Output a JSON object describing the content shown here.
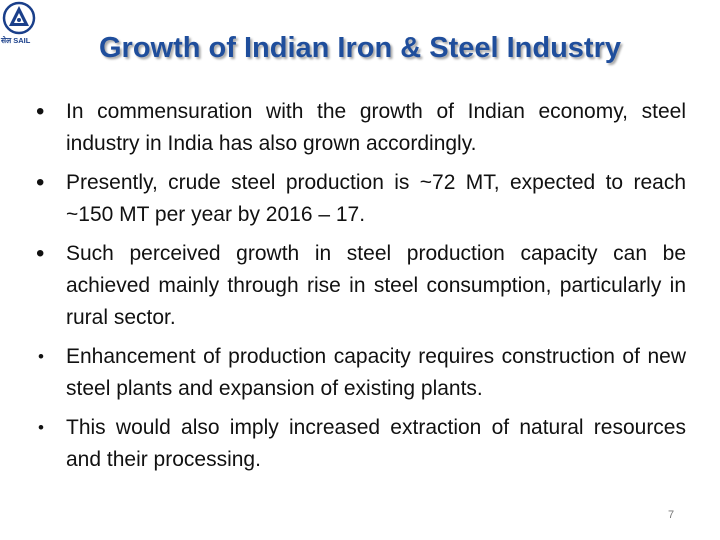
{
  "logo": {
    "icon": "sail-logo-icon",
    "label": "सेल SAIL",
    "color": "#1a3f8a"
  },
  "slide": {
    "title": "Growth of Indian Iron & Steel Industry",
    "title_color": "#1f4e9c",
    "bullets": [
      {
        "text": "In commensuration with the growth of Indian economy, steel industry in India has also grown accordingly.",
        "marker": "•"
      },
      {
        "text": "Presently, crude steel production is ~72 MT, expected to reach ~150 MT per year by 2016 – 17.",
        "marker": "•"
      },
      {
        "text": "Such perceived growth in steel production capacity can be achieved mainly through rise in steel consumption, particularly in rural sector.",
        "marker": "•"
      },
      {
        "text": "Enhancement of production capacity requires construction of new steel plants and expansion of existing plants.",
        "marker": "•"
      },
      {
        "text": "This would also imply increased extraction of natural resources and their processing.",
        "marker": "•"
      }
    ],
    "page_number": "7"
  }
}
